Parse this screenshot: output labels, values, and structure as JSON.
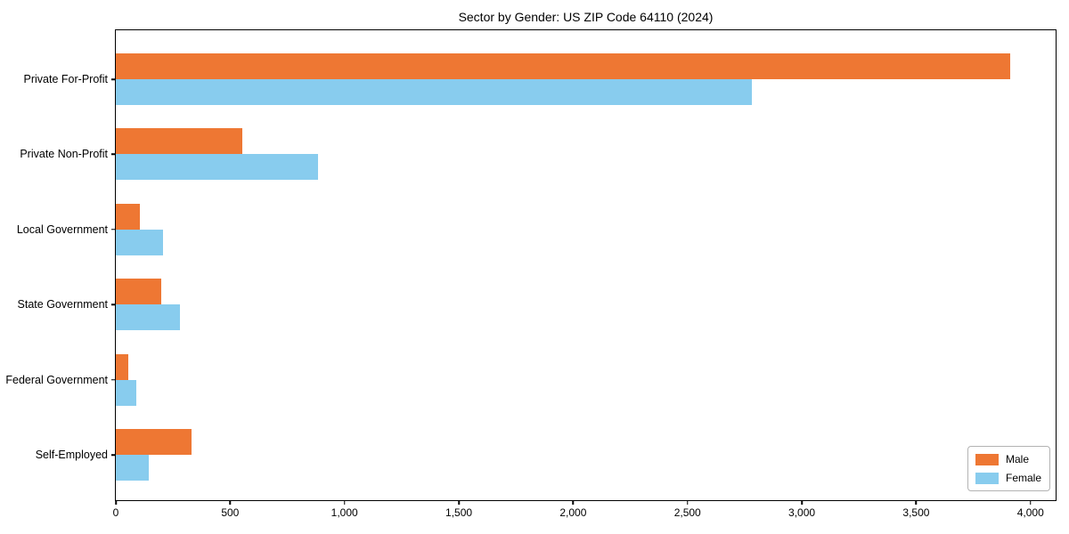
{
  "chart_data": {
    "type": "bar",
    "orientation": "horizontal",
    "title": "Sector by Gender: US ZIP Code 64110 (2024)",
    "categories": [
      "Private For-Profit",
      "Private Non-Profit",
      "Local Government",
      "State Government",
      "Federal Government",
      "Self-Employed"
    ],
    "series": [
      {
        "name": "Male",
        "color": "#ee7733",
        "values": [
          3910,
          555,
          105,
          200,
          55,
          330
        ]
      },
      {
        "name": "Female",
        "color": "#88ccee",
        "values": [
          2780,
          885,
          205,
          280,
          90,
          145
        ]
      }
    ],
    "xlim": [
      0,
      4110
    ],
    "xticks": [
      0,
      500,
      1000,
      1500,
      2000,
      2500,
      3000,
      3500,
      4000
    ],
    "xtick_labels": [
      "0",
      "500",
      "1,000",
      "1,500",
      "2,000",
      "2,500",
      "3,000",
      "3,500",
      "4,000"
    ],
    "xlabel": "",
    "ylabel": "",
    "grid": false,
    "legend": {
      "position": "lower right",
      "entries": [
        "Male",
        "Female"
      ]
    }
  }
}
